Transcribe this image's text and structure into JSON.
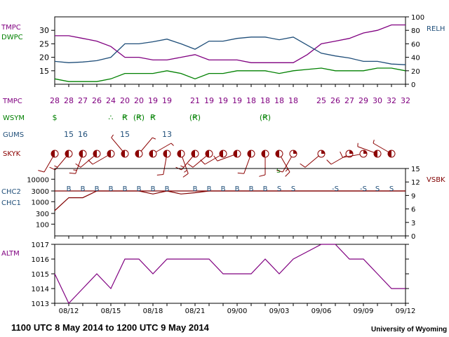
{
  "colors": {
    "temperature": "#800080",
    "dewpoint": "#008000",
    "humidity": "#1f4e79",
    "gust": "#1f4e79",
    "sky": "#8b0000",
    "ceiling": "#800000",
    "visibility": "#800000",
    "altimeter": "#800080",
    "text": "#000000"
  },
  "footer": {
    "period": "1100 UTC 8 May 2014 to 1200 UTC 9 May 2014",
    "credit": "University of Wyoming"
  },
  "chart_data": [
    {
      "type": "line",
      "panel": "temperature-dewpoint-humidity",
      "labels": {
        "temperature": "TMPC",
        "dewpoint": "DWPC",
        "humidity": "RELH"
      },
      "x_tick_labels": [
        "08/12",
        "08/15",
        "08/18",
        "08/21",
        "09/00",
        "09/03",
        "09/06",
        "09/09",
        "09/12"
      ],
      "left_axis": {
        "ylim": [
          10,
          35
        ],
        "ticks": [
          15,
          20,
          25,
          30
        ]
      },
      "right_axis": {
        "ylim": [
          0,
          100
        ],
        "ticks": [
          0,
          20,
          40,
          60,
          80,
          100
        ]
      },
      "x": [
        0,
        1,
        2,
        3,
        4,
        5,
        6,
        7,
        8,
        9,
        10,
        11,
        12,
        13,
        14,
        15,
        16,
        17,
        18,
        19,
        20,
        21,
        22,
        23,
        24,
        25
      ],
      "series": [
        {
          "name": "TMPC",
          "values": [
            28,
            28,
            27,
            26,
            24,
            20,
            20,
            19,
            19,
            20,
            21,
            19,
            19,
            19,
            18,
            18,
            18,
            18,
            21,
            25,
            26,
            27,
            29,
            30,
            32,
            32
          ]
        },
        {
          "name": "DWPC",
          "values": [
            12,
            11,
            11,
            11,
            12,
            14,
            14,
            14,
            15,
            14,
            12,
            14,
            14,
            15,
            15,
            15,
            14,
            15,
            15.5,
            16,
            15,
            15,
            15,
            16,
            16,
            15
          ]
        },
        {
          "name": "RELH",
          "values": [
            34,
            32,
            33,
            35,
            40,
            60,
            60,
            63,
            67,
            60,
            52,
            64,
            64,
            68,
            70,
            70,
            66,
            70,
            58,
            46,
            42,
            39,
            34,
            34,
            30,
            29
          ]
        }
      ]
    },
    {
      "type": "table",
      "panel": "station-text-rows",
      "rows": [
        {
          "label": "TMPC",
          "entries": [
            {
              "i": 0,
              "v": "28"
            },
            {
              "i": 1,
              "v": "28"
            },
            {
              "i": 2,
              "v": "27"
            },
            {
              "i": 3,
              "v": "26"
            },
            {
              "i": 4,
              "v": "24"
            },
            {
              "i": 5,
              "v": "20"
            },
            {
              "i": 6,
              "v": "20"
            },
            {
              "i": 7,
              "v": "19"
            },
            {
              "i": 8,
              "v": "19"
            },
            {
              "i": 10,
              "v": "21"
            },
            {
              "i": 11,
              "v": "19"
            },
            {
              "i": 12,
              "v": "19"
            },
            {
              "i": 13,
              "v": "19"
            },
            {
              "i": 14,
              "v": "18"
            },
            {
              "i": 15,
              "v": "18"
            },
            {
              "i": 16,
              "v": "18"
            },
            {
              "i": 17,
              "v": "18"
            },
            {
              "i": 19,
              "v": "25"
            },
            {
              "i": 20,
              "v": "26"
            },
            {
              "i": 21,
              "v": "27"
            },
            {
              "i": 22,
              "v": "29"
            },
            {
              "i": 23,
              "v": "30"
            },
            {
              "i": 24,
              "v": "32"
            },
            {
              "i": 25,
              "v": "32"
            }
          ]
        },
        {
          "label": "WSYM",
          "entries": [
            {
              "i": 0,
              "v": "$"
            },
            {
              "i": 4,
              "v": "∴"
            },
            {
              "i": 5,
              "v": "Ꞧ"
            },
            {
              "i": 6,
              "v": "(Ꞧ)"
            },
            {
              "i": 7,
              "v": "Ꞧ"
            },
            {
              "i": 10,
              "v": "(Ꞧ)"
            },
            {
              "i": 15,
              "v": "(Ꞧ)"
            }
          ]
        },
        {
          "label": "GUMS",
          "entries": [
            {
              "i": 1,
              "v": "15"
            },
            {
              "i": 2,
              "v": "16"
            },
            {
              "i": 5,
              "v": "15"
            },
            {
              "i": 8,
              "v": "13"
            }
          ]
        }
      ]
    },
    {
      "type": "scatter",
      "panel": "sky-cover",
      "label": "SKYK",
      "x": [
        0,
        1,
        2,
        3,
        4,
        5,
        6,
        7,
        8,
        9,
        10,
        11,
        12,
        13,
        14,
        15,
        16,
        17,
        19,
        21,
        22,
        23,
        24
      ],
      "cover": [
        0.5,
        0.5,
        0.5,
        0.5,
        0.5,
        0.5,
        0.5,
        0.5,
        0.5,
        0.5,
        0.5,
        0.5,
        0.5,
        0.5,
        0.5,
        0.5,
        0.5,
        0.25,
        0.25,
        0.25,
        0.25,
        0.5,
        0.5
      ],
      "wind_dir_deg": [
        210,
        220,
        200,
        230,
        240,
        320,
        40,
        60,
        190,
        160,
        220,
        230,
        240,
        250,
        200,
        180,
        150,
        210,
        230,
        240,
        260,
        290,
        300
      ],
      "wind_speed_kt": [
        10,
        15,
        15,
        10,
        10,
        5,
        5,
        5,
        10,
        15,
        15,
        10,
        10,
        10,
        10,
        10,
        15,
        10,
        10,
        10,
        10,
        5,
        5
      ]
    },
    {
      "type": "line",
      "panel": "ceiling-visibility",
      "labels": {
        "ceiling_2": "CHC2",
        "ceiling_1": "CHC1",
        "visibility": "VSBK"
      },
      "left_axis": {
        "scale": "log",
        "ylim": [
          30,
          30000
        ],
        "ticks": [
          100,
          300,
          1000,
          3000,
          10000
        ],
        "tick_labels": [
          "100",
          "300",
          "1000",
          "3000",
          "10000"
        ]
      },
      "right_axis": {
        "ylim": [
          0,
          15
        ],
        "ticks": [
          0,
          3,
          6,
          9,
          12,
          15
        ]
      },
      "x": [
        0,
        1,
        2,
        3,
        4,
        5,
        6,
        7,
        8,
        9,
        10,
        11,
        12,
        13,
        14,
        15,
        16,
        17,
        18,
        19,
        20,
        21,
        22,
        23,
        24,
        25
      ],
      "series": [
        {
          "name": "CHC1",
          "values": [
            400,
            1500,
            1500,
            3000,
            3000,
            3000,
            3000,
            2200,
            3000,
            2200,
            2500,
            3000,
            3000,
            3000,
            3000,
            3000,
            3000,
            3000,
            3000,
            3000,
            3000,
            3000,
            3000,
            3000,
            3000,
            3000
          ]
        },
        {
          "name": "VSBK",
          "values": [
            10,
            10,
            10,
            10,
            10,
            10,
            10,
            10,
            10,
            10,
            10,
            10,
            10,
            10,
            10,
            10,
            10,
            10,
            10,
            10,
            10,
            10,
            10,
            10,
            10,
            10
          ]
        }
      ],
      "markers": [
        {
          "i": 1,
          "v": "B"
        },
        {
          "i": 2,
          "v": "B"
        },
        {
          "i": 3,
          "v": "B"
        },
        {
          "i": 4,
          "v": "B"
        },
        {
          "i": 5,
          "v": "B"
        },
        {
          "i": 6,
          "v": "B"
        },
        {
          "i": 7,
          "v": "B"
        },
        {
          "i": 8,
          "v": "B"
        },
        {
          "i": 10,
          "v": "B"
        },
        {
          "i": 11,
          "v": "B"
        },
        {
          "i": 12,
          "v": "B"
        },
        {
          "i": 13,
          "v": "B"
        },
        {
          "i": 14,
          "v": "B"
        },
        {
          "i": 15,
          "v": "B"
        },
        {
          "i": 16,
          "v": "S"
        },
        {
          "i": 17,
          "v": "S"
        },
        {
          "i": 20,
          "v": "-S"
        },
        {
          "i": 22,
          "v": "-S"
        },
        {
          "i": 23,
          "v": "S"
        },
        {
          "i": 24,
          "v": "S"
        }
      ]
    },
    {
      "type": "line",
      "panel": "altimeter",
      "label": "ALTM",
      "left_axis": {
        "ylim": [
          1013,
          1017
        ],
        "ticks": [
          1013,
          1014,
          1015,
          1016,
          1017
        ]
      },
      "x": [
        0,
        1,
        2,
        3,
        4,
        5,
        6,
        7,
        8,
        9,
        10,
        11,
        12,
        13,
        14,
        15,
        16,
        17,
        18,
        19,
        20,
        21,
        22,
        23,
        24,
        25
      ],
      "values": [
        1015,
        1013,
        1014,
        1015,
        1014,
        1016,
        1016,
        1015,
        1016,
        1016,
        1016,
        1016,
        1015,
        1015,
        1015,
        1016,
        1015,
        1016,
        1016.5,
        1017,
        1017,
        1016,
        1016,
        1015,
        1014,
        1014
      ]
    }
  ]
}
